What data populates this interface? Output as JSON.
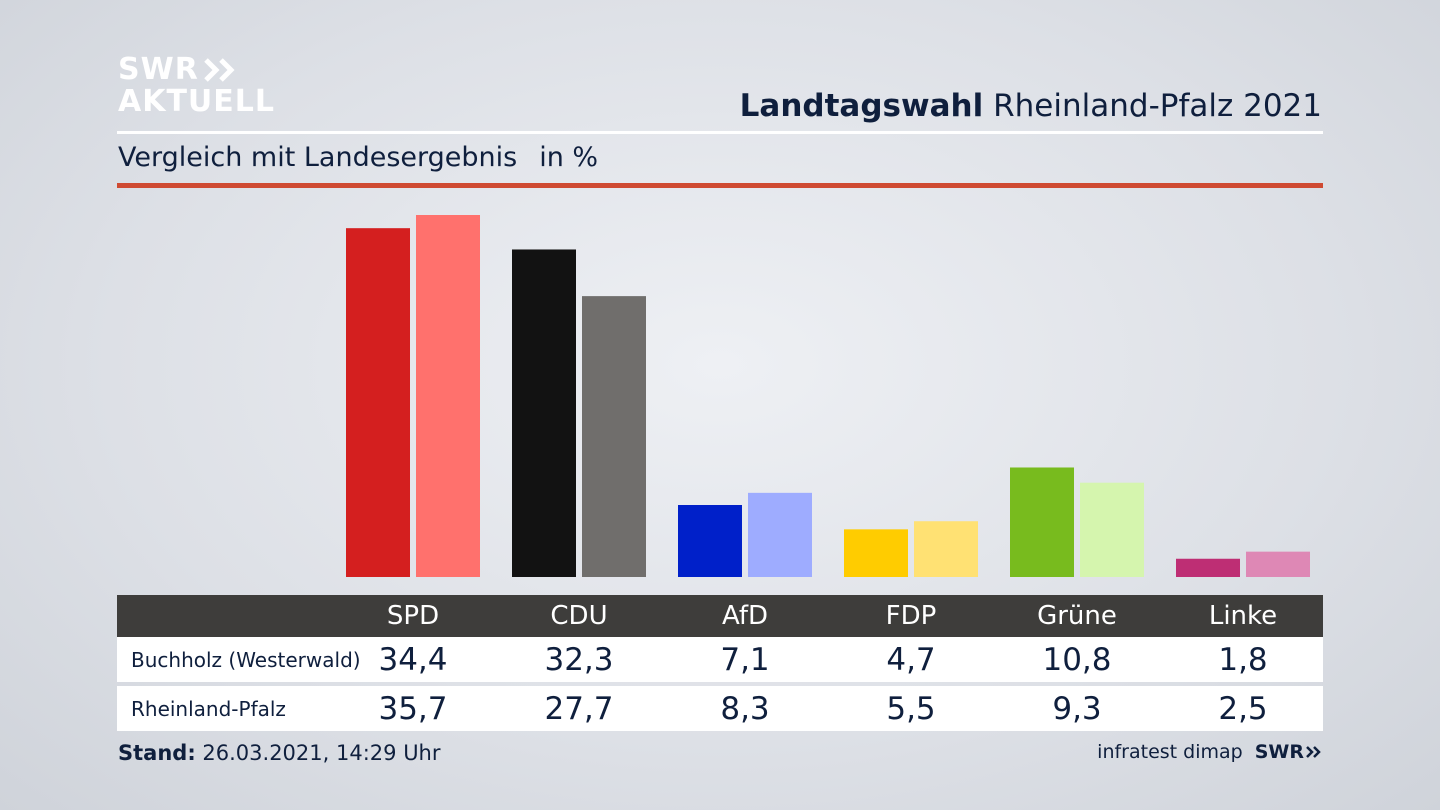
{
  "logo": {
    "line1": "SWR",
    "line2": "AKTUELL"
  },
  "header": {
    "title_bold": "Landtagswahl",
    "title_rest": "Rheinland-Pfalz 2021"
  },
  "subtitle": {
    "text": "Vergleich mit Landesergebnis",
    "unit": "in %"
  },
  "colors": {
    "rule_red": "#cf4a32",
    "header_bg": "#3e3d3b"
  },
  "chart_data": {
    "type": "bar",
    "title": "Vergleich mit Landesergebnis",
    "ylabel": "in %",
    "xlabel": "",
    "ylim": [
      0,
      36
    ],
    "categories": [
      "SPD",
      "CDU",
      "AfD",
      "FDP",
      "Grüne",
      "Linke"
    ],
    "series": [
      {
        "name": "Buchholz (Westerwald)",
        "values": [
          34.4,
          32.3,
          7.1,
          4.7,
          10.8,
          1.8
        ],
        "colors": [
          "#d41f1f",
          "#121212",
          "#0020c9",
          "#ffcc00",
          "#78bb1e",
          "#be2e74"
        ]
      },
      {
        "name": "Rheinland-Pfalz",
        "values": [
          35.7,
          27.7,
          8.3,
          5.5,
          9.3,
          2.5
        ],
        "colors": [
          "#ff716d",
          "#706e6c",
          "#9eacff",
          "#ffe173",
          "#d5f5ae",
          "#de88b5"
        ]
      }
    ],
    "grid": false,
    "legend": "table-below"
  },
  "table": {
    "parties": [
      "SPD",
      "CDU",
      "AfD",
      "FDP",
      "Grüne",
      "Linke"
    ],
    "rows": [
      {
        "label": "Buchholz (Westerwald)",
        "values": [
          "34,4",
          "32,3",
          "7,1",
          "4,7",
          "10,8",
          "1,8"
        ]
      },
      {
        "label": "Rheinland-Pfalz",
        "values": [
          "35,7",
          "27,7",
          "8,3",
          "5,5",
          "9,3",
          "2,5"
        ]
      }
    ]
  },
  "footer": {
    "stand_label": "Stand:",
    "stand_value": "26.03.2021, 14:29 Uhr",
    "source": "infratest dimap",
    "brand": "SWR"
  }
}
